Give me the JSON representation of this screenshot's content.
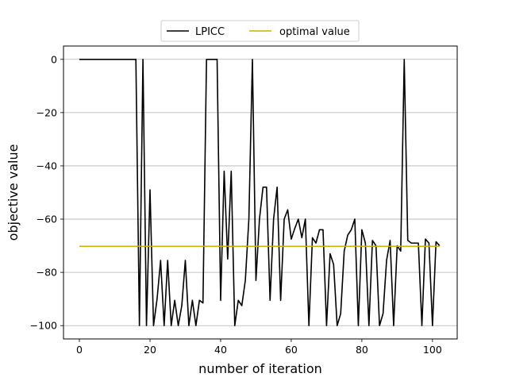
{
  "chart_data": {
    "type": "line",
    "xlabel": "number of iteration",
    "ylabel": "objective value",
    "xlim": [
      -4.5,
      107
    ],
    "ylim": [
      -105,
      5
    ],
    "xticks": [
      0,
      20,
      40,
      60,
      80,
      100
    ],
    "yticks": [
      0,
      -20,
      -40,
      -60,
      -80,
      -100
    ],
    "xtick_labels": [
      "0",
      "20",
      "40",
      "60",
      "80",
      "100"
    ],
    "ytick_labels": [
      "0",
      "−20",
      "−40",
      "−60",
      "−80",
      "−100"
    ],
    "grid": "horizontal",
    "legend_position": "top-center",
    "series": [
      {
        "name": "LPICC",
        "color": "#000000",
        "x": [
          0,
          16,
          17,
          18,
          19,
          20,
          21,
          22,
          23,
          24,
          25,
          26,
          27,
          28,
          29,
          30,
          31,
          32,
          33,
          34,
          35,
          36,
          37,
          38,
          39,
          40,
          41,
          42,
          43,
          44,
          45,
          46,
          47,
          48,
          49,
          50,
          51,
          52,
          53,
          54,
          55,
          56,
          57,
          58,
          59,
          60,
          61,
          62,
          63,
          64,
          65,
          66,
          67,
          68,
          69,
          70,
          71,
          72,
          73,
          74,
          75,
          76,
          77,
          78,
          79,
          80,
          81,
          82,
          83,
          84,
          85,
          86,
          87,
          88,
          89,
          90,
          91,
          92,
          93,
          94,
          95,
          96,
          97,
          98,
          99,
          100,
          101,
          102
        ],
        "y": [
          0,
          0,
          -100,
          0,
          -100,
          -49,
          -100,
          -90,
          -75.5,
          -100,
          -75.5,
          -100,
          -90.5,
          -100,
          -92.5,
          -75.5,
          -100,
          -90.5,
          -100,
          -90.5,
          -91.5,
          0,
          0,
          0,
          0,
          -90.5,
          -42,
          -75,
          -42,
          -100,
          -90.5,
          -92.5,
          -83,
          -60,
          0,
          -83,
          -60,
          -48,
          -48,
          -90.5,
          -60,
          -48,
          -90.5,
          -60,
          -56.5,
          -67.5,
          -63.5,
          -60,
          -67,
          -60,
          -100,
          -67,
          -69,
          -64,
          -64,
          -100,
          -73,
          -77,
          -100,
          -95.5,
          -72,
          -66,
          -64,
          -60,
          -100,
          -64,
          -69,
          -100,
          -68,
          -70,
          -100,
          -95.5,
          -75.5,
          -68,
          -100,
          -70,
          -72,
          0,
          -68,
          -69,
          -69,
          -69,
          -100,
          -67.5,
          -69,
          -100,
          -68.5,
          -70
        ]
      },
      {
        "name": "optimal value",
        "color": "#c8b400",
        "x": [
          0,
          102
        ],
        "y": [
          -70.2,
          -70.2
        ]
      }
    ]
  }
}
